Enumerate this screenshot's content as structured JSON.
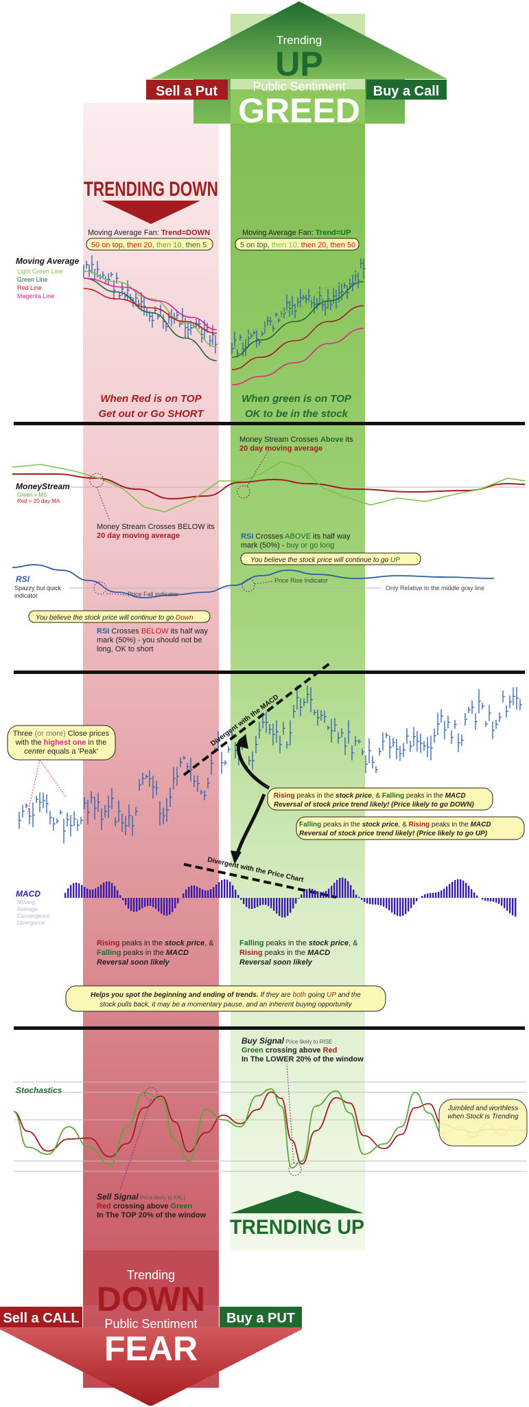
{
  "top": {
    "trending": "Trending",
    "up": "UP",
    "public_sentiment": "Public Sentiment",
    "greed": "GREED",
    "sell_put": "Sell a Put",
    "buy_call": "Buy a Call"
  },
  "bottom": {
    "trending": "Trending",
    "down": "DOWN",
    "public_sentiment": "Public Sentiment",
    "fear": "FEAR",
    "sell_call": "Sell a CALL",
    "buy_put": "Buy a PUT"
  },
  "trending_down_label": "TRENDING DOWN",
  "trending_up_label": "TRENDING UP",
  "moving_average": {
    "title": "Moving Average",
    "legend": [
      "Light Green Line",
      "Green Line",
      "Red Line",
      "Magenta Line"
    ],
    "fan_down_prefix": "Moving Average Fan: ",
    "fan_down_value": "Trend=DOWN",
    "fan_down_order": [
      "50 on top, ",
      "then 20, ",
      "then 10, ",
      "then 5"
    ],
    "fan_up_prefix": "Moving Average Fan: ",
    "fan_up_value": "Trend=UP",
    "fan_up_order": [
      "5 on top, ",
      "then 10, ",
      "then 20, ",
      "then 50"
    ],
    "red_top_1": "When Red is on TOP",
    "red_top_2": "Get out or Go SHORT",
    "green_top_1": "When green is on TOP",
    "green_top_2": "OK to be in the stock"
  },
  "moneystream": {
    "title": "MoneyStream",
    "legend_1": "Green = MS",
    "legend_2": "Red = 20 day MA",
    "above_1": "Money Stream Crosses ",
    "above_2": "Above",
    "above_3": " its",
    "above_4": "20 day moving average",
    "below_1": "Money Stream Crosses BELOW its",
    "below_2": "20 day moving average"
  },
  "rsi": {
    "title": "RSI",
    "desc_1": "Spazzy but quick",
    "desc_2": "indicator",
    "price_fall": "Price Fall indicator",
    "price_rise": "Price Rise Indicator",
    "relative": "Only Relative to the middle gray line",
    "above_1": "RSI",
    "above_2": " Crosses ",
    "above_3": "ABOVE",
    "above_4": " its half way",
    "above_5": "mark (50%) - ",
    "above_6": "buy or go long",
    "believe_up_1": "You believe the stock price will continue to go ",
    "believe_up_2": "UP",
    "believe_down_1": "You believe the stock price will continue to go ",
    "believe_down_2": "Down",
    "below_1": "RSI",
    "below_2": " Crosses ",
    "below_3": "BELOW",
    "below_4": " its half way",
    "below_5": "mark (50%) - you should not be",
    "below_6": "long, OK to short"
  },
  "peak": {
    "line1_a": "Three ",
    "line1_b": "(or more)",
    "line1_c": " Close prices",
    "line2_a": "with the ",
    "line2_b": "highest one",
    "line2_c": " in the",
    "line3_a": "center",
    "line3_b": " equals a 'Peak'"
  },
  "divergent_macd": "Divergent with the MACD",
  "divergent_price": "Divergent with the Price Chart",
  "box_rising": {
    "a": "Rising",
    "b": " peaks in the ",
    "c": "stock price",
    "d": ", & ",
    "e": "Falling",
    "f": " peaks in the ",
    "g": "MACD",
    "line2": "Reversal of stock price trend likely! (Price likely to go DOWN)"
  },
  "box_falling": {
    "a": "Falling",
    "b": " peaks in the ",
    "c": "stock price",
    "d": ", & ",
    "e": "Rising",
    "f": " peaks in the ",
    "g": "MACD",
    "line2": "Reversal of stock price trend likely! (Price likely to go UP)"
  },
  "macd": {
    "title": "MACD",
    "acronym": [
      "Moving",
      "Average",
      "Convergence",
      "Divergence"
    ],
    "left_1a": "Rising",
    "left_1b": " peaks in the ",
    "left_1c": "stock price",
    "left_1d": ", &",
    "left_2a": "Falling",
    "left_2b": " peaks in the ",
    "left_2c": "MACD",
    "left_3": "Reversal soon likely",
    "right_1a": "Falling",
    "right_1b": " peaks in the ",
    "right_1c": "stock price",
    "right_1d": ", &",
    "right_2a": "Rising",
    "right_2b": " peaks in the ",
    "right_2c": "MACD",
    "right_3": "Reversal soon likely"
  },
  "helps": {
    "l1a": "Helps you spot the beginning and ending of trends.",
    "l1b": "  If they are ",
    "l1c": "both",
    "l1d": " going ",
    "l1e": "UP",
    "l1f": " and the",
    "l2": "stock pulls back, it may be a momentary pause, and an inherent buying opportunity"
  },
  "stochastics": {
    "title": "Stochastics",
    "buy_title": "Buy Signal",
    "buy_small": " Price likely to RISE",
    "buy_2a": "Green",
    "buy_2b": " crossing above ",
    "buy_2c": "Red",
    "buy_3": "In The LOWER 20% of the window",
    "sell_title": "Sell Signal",
    "sell_small": " Price likely to FALL",
    "sell_2a": "Red",
    "sell_2b": " crossing above ",
    "sell_2c": "Green",
    "sell_3": "In The TOP 20% of the window",
    "jumbled_1": "Jumbled and worthless",
    "jumbled_2": "when Stock is Trending"
  },
  "colors": {
    "dark_green": "#1f6b2f",
    "dark_red": "#a51c20",
    "band_green": "#9bcf6a",
    "band_red": "#e6a0a6",
    "note_yellow": "#fbf7b5",
    "blue": "#2a5da8",
    "macd_bar": "#3a1aa8"
  }
}
